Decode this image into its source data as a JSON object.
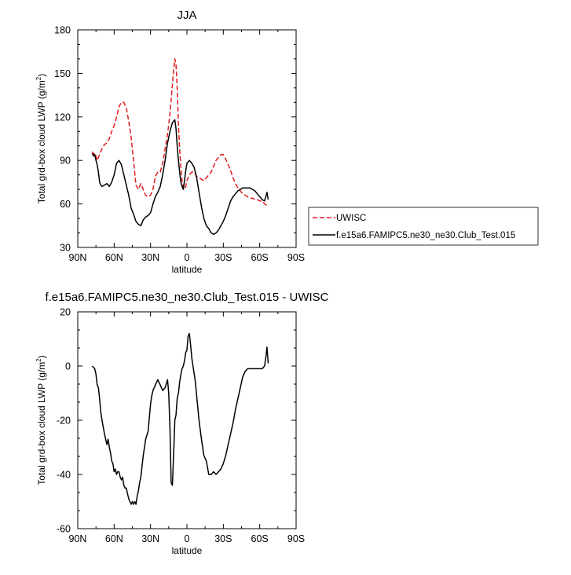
{
  "chart_data": [
    {
      "type": "line",
      "title": "JJA",
      "xlabel": "latitude",
      "ylabel": "Total grd-box cloud LWP (g/m",
      "ylabel_sup": "2",
      "ylabel_close": ")",
      "xlim": [
        90,
        -90
      ],
      "ylim": [
        30,
        180
      ],
      "xticks": [
        90,
        60,
        30,
        0,
        -30,
        -60,
        -90
      ],
      "xtick_labels": [
        "90N",
        "60N",
        "30N",
        "0",
        "30S",
        "60S",
        "90S"
      ],
      "yticks": [
        30,
        60,
        90,
        120,
        150,
        180
      ],
      "ytick_labels": [
        "30",
        "60",
        "90",
        "120",
        "150",
        "180"
      ],
      "grid": false,
      "legend_position": "right",
      "series": [
        {
          "name": "UWISC",
          "color": "#e41a1c",
          "dash": "dashed",
          "x": [
            78,
            77,
            76,
            75,
            74,
            73,
            72,
            71,
            70,
            68,
            66,
            64,
            62,
            60,
            58,
            56,
            54,
            52,
            50,
            48,
            46,
            44,
            42,
            40,
            38,
            36,
            34,
            32,
            30,
            28,
            26,
            24,
            22,
            20,
            18,
            16,
            14,
            12,
            11,
            10,
            9,
            8,
            7,
            6,
            5,
            4,
            3,
            2,
            1,
            0,
            -2,
            -4,
            -6,
            -8,
            -10,
            -12,
            -14,
            -16,
            -18,
            -20,
            -22,
            -24,
            -26,
            -28,
            -30,
            -32,
            -34,
            -36,
            -38,
            -40,
            -42,
            -44,
            -46,
            -48,
            -50,
            -52,
            -54,
            -56,
            -58,
            -60,
            -62,
            -64,
            -66,
            -67
          ],
          "y": [
            96,
            94,
            95,
            93,
            90,
            92,
            94,
            96,
            98,
            101,
            102,
            105,
            110,
            114,
            120,
            127,
            130,
            130,
            126,
            117,
            106,
            90,
            73,
            70,
            74,
            70,
            66,
            65,
            66,
            70,
            79,
            82,
            82,
            88,
            98,
            108,
            122,
            142,
            152,
            160,
            156,
            140,
            115,
            98,
            85,
            76,
            71,
            70,
            72,
            76,
            80,
            82,
            82,
            79,
            78,
            77,
            76,
            78,
            80,
            82,
            86,
            90,
            92,
            94,
            94,
            91,
            87,
            83,
            78,
            74,
            71,
            69,
            67,
            66,
            65,
            64,
            64,
            63,
            63,
            62,
            62,
            60,
            59,
            58
          ]
        },
        {
          "name": "f.e15a6.FAMIPC5.ne30_ne30.Club_Test.015",
          "color": "#000000",
          "dash": "solid",
          "x": [
            78,
            77,
            76,
            75,
            74,
            73,
            72,
            71,
            70,
            68,
            66,
            64,
            62,
            60,
            58,
            56,
            54,
            52,
            50,
            48,
            46,
            44,
            42,
            40,
            38,
            36,
            34,
            32,
            30,
            28,
            26,
            24,
            22,
            20,
            18,
            16,
            14,
            12,
            10,
            9,
            8,
            7,
            6,
            5,
            4,
            3,
            2,
            1,
            0,
            -2,
            -4,
            -6,
            -8,
            -10,
            -12,
            -14,
            -16,
            -18,
            -20,
            -22,
            -24,
            -26,
            -28,
            -30,
            -32,
            -34,
            -36,
            -38,
            -40,
            -42,
            -44,
            -46,
            -48,
            -50,
            -52,
            -54,
            -56,
            -58,
            -60,
            -62,
            -64,
            -65,
            -66,
            -67
          ],
          "y": [
            95,
            93,
            94,
            90,
            87,
            82,
            75,
            73,
            72,
            73,
            74,
            72,
            75,
            80,
            88,
            90,
            87,
            80,
            73,
            66,
            57,
            53,
            48,
            46,
            45,
            49,
            51,
            52,
            54,
            60,
            65,
            68,
            72,
            80,
            90,
            102,
            110,
            116,
            118,
            112,
            100,
            90,
            82,
            75,
            72,
            70,
            76,
            83,
            88,
            90,
            88,
            85,
            78,
            68,
            58,
            50,
            45,
            43,
            40,
            39,
            40,
            42,
            45,
            48,
            52,
            57,
            62,
            65,
            67,
            69,
            70,
            71,
            71,
            71,
            71,
            70,
            69,
            67,
            65,
            63,
            62,
            65,
            68,
            63
          ]
        }
      ]
    },
    {
      "type": "line",
      "title": "f.e15a6.FAMIPC5.ne30_ne30.Club_Test.015 - UWISC",
      "xlabel": "latitude",
      "ylabel": "Total grd-box cloud LWP (g/m",
      "ylabel_sup": "2",
      "ylabel_close": ")",
      "xlim": [
        90,
        -90
      ],
      "ylim": [
        -60,
        20
      ],
      "xticks": [
        90,
        60,
        30,
        0,
        -30,
        -60,
        -90
      ],
      "xtick_labels": [
        "90N",
        "60N",
        "30N",
        "0",
        "30S",
        "60S",
        "90S"
      ],
      "yticks": [
        -60,
        -40,
        -20,
        0,
        20
      ],
      "ytick_labels": [
        "-60",
        "-40",
        "-20",
        "0",
        "20"
      ],
      "grid": false,
      "series": [
        {
          "color": "#000000",
          "dash": "solid",
          "x": [
            78,
            76,
            75,
            74,
            73,
            72,
            71,
            70,
            68,
            67,
            66,
            65,
            64,
            63,
            62,
            61,
            60,
            59,
            58,
            57,
            56,
            55,
            54,
            53,
            52,
            51,
            50,
            49,
            48,
            47,
            46,
            45,
            44,
            43,
            42,
            41,
            40,
            39,
            38,
            36,
            34,
            32,
            30,
            29,
            28,
            26,
            24,
            22,
            20,
            18,
            16,
            15,
            14,
            13,
            12,
            11,
            10,
            9,
            8,
            7,
            6,
            5,
            4,
            3,
            2,
            1,
            0,
            -1,
            -2,
            -3,
            -4,
            -5,
            -6,
            -7,
            -8,
            -10,
            -12,
            -14,
            -16,
            -18,
            -20,
            -22,
            -24,
            -26,
            -28,
            -30,
            -32,
            -34,
            -36,
            -38,
            -40,
            -42,
            -44,
            -46,
            -48,
            -50,
            -52,
            -54,
            -56,
            -58,
            -60,
            -62,
            -64,
            -65,
            -66,
            -67
          ],
          "y": [
            0,
            -1,
            -3,
            -7,
            -8,
            -12,
            -17,
            -20,
            -25,
            -27,
            -29,
            -27,
            -30,
            -32,
            -35,
            -36,
            -39,
            -38,
            -40,
            -39,
            -39,
            -41,
            -42,
            -41,
            -44,
            -45,
            -45,
            -47,
            -49,
            -50,
            -51,
            -50,
            -51,
            -50,
            -51,
            -48,
            -46,
            -43,
            -41,
            -33,
            -27,
            -24,
            -14,
            -11,
            -9,
            -7,
            -5,
            -7,
            -9,
            -8,
            -5,
            -10,
            -23,
            -43,
            -44,
            -33,
            -20,
            -18,
            -12,
            -10,
            -6,
            -3,
            -1,
            0,
            2,
            5,
            6,
            11,
            12,
            8,
            3,
            0,
            -3,
            -6,
            -11,
            -20,
            -27,
            -33,
            -35,
            -40,
            -40,
            -39,
            -40,
            -39,
            -38,
            -36,
            -33,
            -29,
            -25,
            -21,
            -16,
            -12,
            -8,
            -4,
            -2,
            -1,
            -1,
            -1,
            -1,
            -1,
            -1,
            -1,
            0,
            3,
            7,
            1
          ]
        }
      ]
    }
  ]
}
